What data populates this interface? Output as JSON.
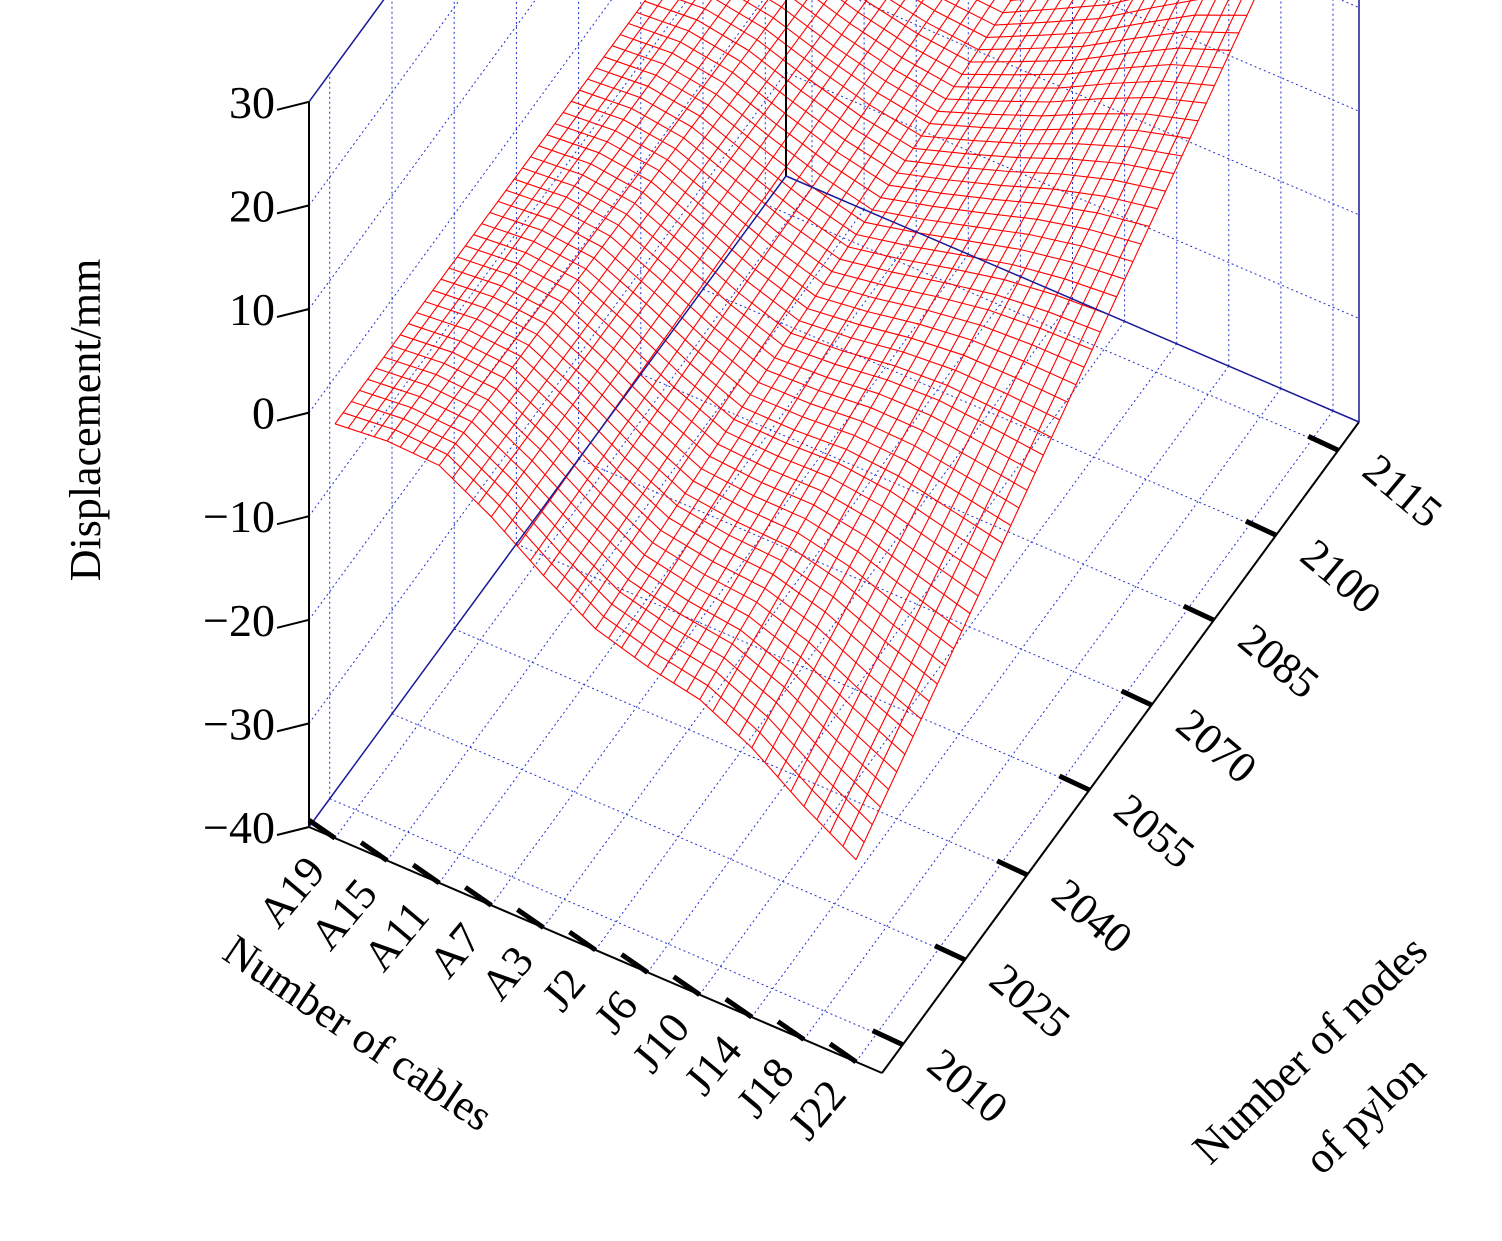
{
  "chart_data": {
    "type": "surface-3d",
    "title": "",
    "zlabel": "Displacement/mm",
    "xlabel": "Number of cables",
    "ylabel_lines": [
      "Number of nodes",
      "of pylon"
    ],
    "z_ticks": [
      "30",
      "20",
      "10",
      "0",
      "−10",
      "−20",
      "−30",
      "−40"
    ],
    "z_values": [
      30,
      20,
      10,
      0,
      -10,
      -20,
      -30,
      -40
    ],
    "zlim": [
      -40,
      30
    ],
    "x_ticks": [
      "A19",
      "A15",
      "A11",
      "A7",
      "A3",
      "J2",
      "J6",
      "J10",
      "J14",
      "J18",
      "J22"
    ],
    "y_ticks": [
      "2010",
      "2025",
      "2040",
      "2055",
      "2070",
      "2085",
      "2100",
      "2115"
    ],
    "y_values": [
      2010,
      2025,
      2040,
      2055,
      2070,
      2085,
      2100,
      2115
    ],
    "ylim": [
      2005,
      2120
    ],
    "grid": true,
    "colors": {
      "surface": "#ff0000",
      "grid": "#2233cc",
      "axis": "#000000"
    },
    "profiles_note_hidden": "",
    "surface_profiles": [
      {
        "node": 2005,
        "displacement": [
          0.0,
          0.5,
          0.3,
          -2.5,
          -6.0,
          -9.0,
          -10.5,
          -11.5,
          -14.0,
          -17.5,
          -20.5
        ]
      },
      {
        "node": 2115,
        "displacement": [
          0.0,
          0.3,
          -0.8,
          -2.0,
          -2.5,
          -2.5,
          0.5,
          3.5,
          7.5,
          11.5,
          14.5
        ]
      }
    ]
  }
}
